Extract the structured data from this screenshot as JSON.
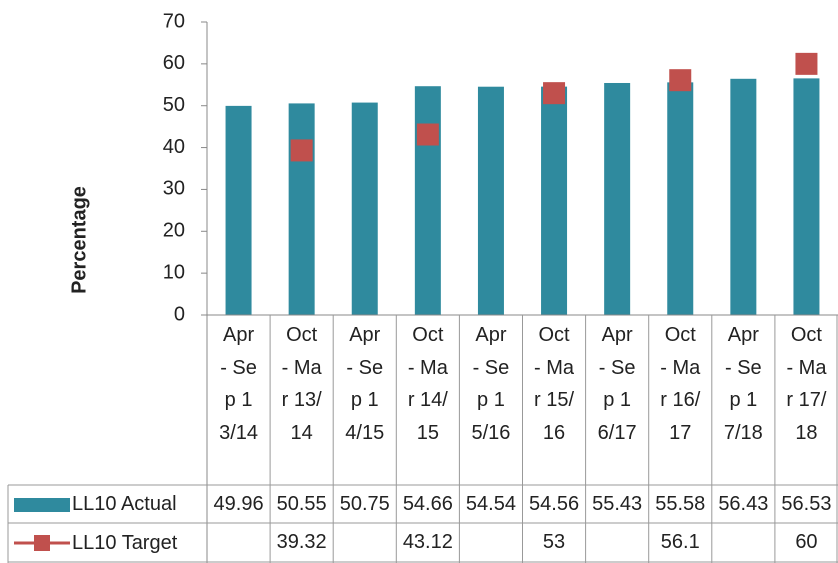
{
  "chart_data": {
    "type": "bar",
    "ylabel": "Percentage",
    "categories": [
      "Apr - Sep 13/14",
      "Oct - Mar 13/14",
      "Apr - Sep 14/15",
      "Oct - Mar 14/15",
      "Apr - Sep 15/16",
      "Oct - Mar 15/16",
      "Apr - Sep 16/17",
      "Oct - Mar 16/17",
      "Apr - Sep 17/18",
      "Oct - Mar 17/18"
    ],
    "series": [
      {
        "name": "LL10 Actual",
        "type": "bar",
        "color": "#2f8a9e",
        "values": [
          49.96,
          50.55,
          50.75,
          54.66,
          54.54,
          54.56,
          55.43,
          55.58,
          56.43,
          56.53
        ]
      },
      {
        "name": "LL10 Target",
        "type": "marker",
        "color": "#c0504d",
        "values": [
          null,
          39.32,
          null,
          43.12,
          null,
          53,
          null,
          56.1,
          null,
          60
        ]
      }
    ],
    "ylim": [
      0,
      70
    ],
    "yticks": [
      0,
      10,
      20,
      30,
      40,
      50,
      60,
      70
    ]
  }
}
